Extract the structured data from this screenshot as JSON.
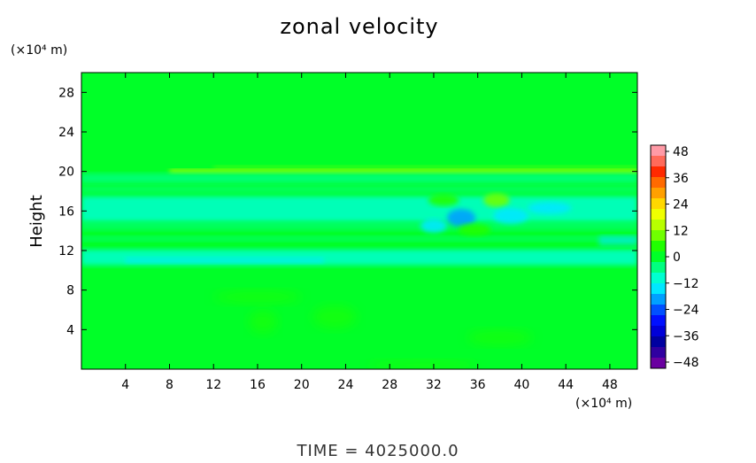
{
  "chart_data": {
    "type": "heatmap",
    "title": "zonal velocity",
    "ylabel": "Height",
    "xlabel": "",
    "x_unit": "(×10⁴ m)",
    "y_unit": "(×10⁴ m)",
    "xlim": [
      0,
      50.5
    ],
    "ylim": [
      0,
      30
    ],
    "x_ticks": [
      4,
      8,
      12,
      16,
      20,
      24,
      28,
      32,
      36,
      40,
      44,
      48
    ],
    "y_ticks": [
      4,
      8,
      12,
      16,
      20,
      24,
      28
    ],
    "colorbar": {
      "ticks": [
        48,
        36,
        24,
        12,
        0,
        -12,
        -24,
        -36,
        -48
      ],
      "range": [
        -48,
        48
      ],
      "colors": [
        "#ff9aa6",
        "#ff6a5a",
        "#ff2a00",
        "#ff6a00",
        "#ffa000",
        "#ffd800",
        "#f0ff00",
        "#b8ff00",
        "#70ff00",
        "#20ff00",
        "#00ff28",
        "#00ff80",
        "#00ffd0",
        "#00e8ff",
        "#00a0ff",
        "#0050ff",
        "#0010ff",
        "#0000d8",
        "#0000a0",
        "#3000a0",
        "#6a00a0"
      ]
    },
    "background_value": 2,
    "features": [
      {
        "name": "jet",
        "y": 20,
        "x_range": [
          8,
          50.5
        ],
        "value": 16
      },
      {
        "name": "upper band",
        "y": 19.3,
        "x_range": [
          0,
          50.5
        ],
        "value": -4
      },
      {
        "name": "easterly band",
        "y": 16.2,
        "x_range": [
          0,
          50.5
        ],
        "value": -10
      },
      {
        "name": "lower band",
        "y": 11.3,
        "x_range": [
          0,
          50.5
        ],
        "value": -7
      },
      {
        "name": "vortex",
        "x": 34.5,
        "y": 15.3,
        "value": -20
      }
    ]
  },
  "footer": {
    "time_text": "TIME  =  4025000.0"
  }
}
